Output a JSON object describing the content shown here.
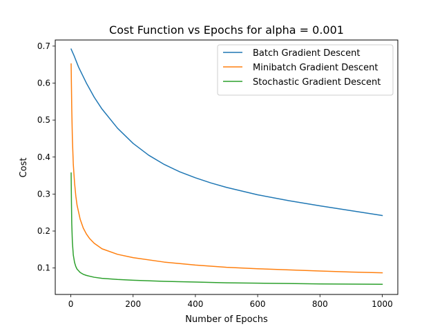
{
  "chart_data": {
    "type": "line",
    "title": "Cost Function vs Epochs for alpha = 0.001",
    "xlabel": "Number of Epochs",
    "ylabel": "Cost",
    "xlim": [
      -50,
      1050
    ],
    "ylim": [
      0.0285,
      0.7165
    ],
    "xticks": [
      0,
      200,
      400,
      600,
      800,
      1000
    ],
    "yticks": [
      0.1,
      0.2,
      0.3,
      0.4,
      0.5,
      0.6,
      0.7
    ],
    "grid": false,
    "legend_position": "top-right",
    "series": [
      {
        "name": "Batch Gradient Descent",
        "color": "#1f77b4",
        "x": [
          1,
          10,
          25,
          50,
          75,
          100,
          150,
          200,
          250,
          300,
          350,
          400,
          450,
          500,
          600,
          700,
          800,
          900,
          1000
        ],
        "y": [
          0.692,
          0.675,
          0.643,
          0.6,
          0.562,
          0.53,
          0.478,
          0.437,
          0.405,
          0.38,
          0.36,
          0.344,
          0.33,
          0.318,
          0.298,
          0.282,
          0.268,
          0.255,
          0.242
        ]
      },
      {
        "name": "Minibatch Gradient Descent",
        "color": "#ff7f0e",
        "x": [
          1,
          3,
          5,
          8,
          12,
          16,
          20,
          30,
          40,
          50,
          60,
          75,
          100,
          150,
          200,
          300,
          400,
          500,
          600,
          700,
          800,
          900,
          1000
        ],
        "y": [
          0.652,
          0.53,
          0.45,
          0.38,
          0.33,
          0.295,
          0.27,
          0.232,
          0.208,
          0.192,
          0.18,
          0.167,
          0.152,
          0.137,
          0.128,
          0.116,
          0.108,
          0.102,
          0.098,
          0.095,
          0.092,
          0.089,
          0.087
        ]
      },
      {
        "name": "Stochastic Gradient Descent",
        "color": "#2ca02c",
        "x": [
          1,
          2,
          3,
          5,
          8,
          12,
          16,
          20,
          30,
          40,
          50,
          75,
          100,
          150,
          200,
          300,
          400,
          500,
          600,
          700,
          800,
          900,
          1000
        ],
        "y": [
          0.357,
          0.28,
          0.22,
          0.17,
          0.135,
          0.115,
          0.104,
          0.097,
          0.088,
          0.083,
          0.08,
          0.075,
          0.072,
          0.069,
          0.067,
          0.064,
          0.062,
          0.06,
          0.059,
          0.058,
          0.057,
          0.0565,
          0.056
        ]
      }
    ]
  }
}
